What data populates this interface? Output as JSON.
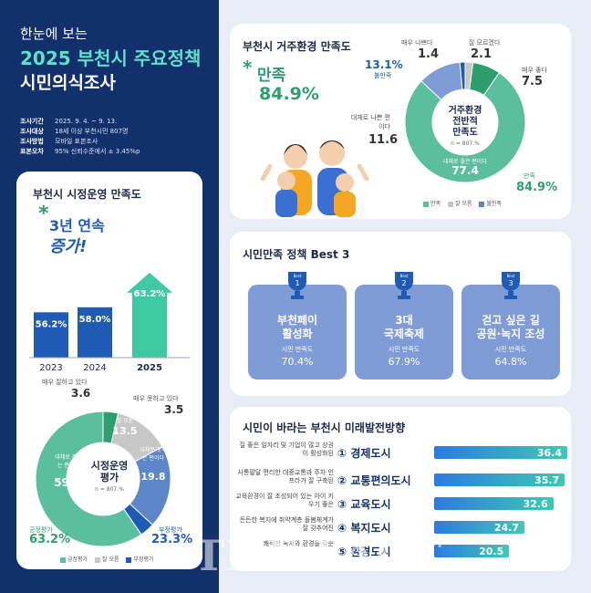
{
  "header": {
    "line1": "한눈에 보는",
    "line2": "2025 부천시 주요정책",
    "line3": "시민의식조사"
  },
  "meta": [
    {
      "k": "조사기간",
      "v": "2025. 9. 4. ~ 9. 13."
    },
    {
      "k": "조사대상",
      "v": "18세 이상 부천시민 807명"
    },
    {
      "k": "조사방법",
      "v": "모바일 표본조사"
    },
    {
      "k": "표본오차",
      "v": "95% 신뢰수준에서 ± 3.45%p"
    }
  ],
  "admin": {
    "title": "부천시 시정운영 만족도",
    "headline1": "3년 연속",
    "headline2": "증가!",
    "donut_center1": "시정운영",
    "donut_center2": "평가",
    "donut_n": "n = 807.%",
    "legend": [
      "긍정평가",
      "잘 모름",
      "부정평가"
    ],
    "labels": {
      "very_bad_label": "매우 잘하고 있다",
      "very_bad_value": "3.6",
      "very_good_label": "매우 못하고 있다",
      "very_good_value": "3.5",
      "dk_label": "잘 모름",
      "dk_value": "13.5",
      "pos_inner_label": "대체로 잘하는 편이다",
      "pos_inner_value": "59.6",
      "neg_inner_label": "대체로 못하는 편이다",
      "neg_inner_value": "19.8",
      "pos_total_label": "긍정평가",
      "pos_total_value": "63.2%",
      "neg_total_label": "부정평가",
      "neg_total_value": "23.3%"
    }
  },
  "living": {
    "title": "부천시 거주환경 만족도",
    "badge_label": "만족",
    "badge_value": "84.9%",
    "center1": "거주환경",
    "center2": "전반적",
    "center3": "만족도",
    "n": "n = 807.%",
    "labels": {
      "very_bad_label": "매우 나쁘다",
      "very_bad_value": "1.4",
      "dk_label": "잘 모르겠다",
      "dk_value": "2.1",
      "very_good_label": "매우 좋다",
      "very_good_value": "7.5",
      "bad_label": "대체로 나쁜 편이다",
      "bad_value": "11.6",
      "good_label": "대체로 좋은 편이다",
      "good_value": "77.4",
      "unsat_value": "13.1%",
      "unsat_label": "불만족",
      "sat_label": "만족",
      "sat_value": "84.9%"
    },
    "legend": [
      "만족",
      "잘 모름",
      "불만족"
    ]
  },
  "best3": {
    "title": "시민만족 정책 Best 3",
    "items": [
      {
        "rank": "1",
        "name1": "부천페이",
        "name2": "활성화",
        "sub": "시민 만족도",
        "pct": "70.4%"
      },
      {
        "rank": "2",
        "name1": "3대",
        "name2": "국제축제",
        "sub": "시민 만족도",
        "pct": "67.9%"
      },
      {
        "rank": "3",
        "name1": "걷고 싶은 길",
        "name2": "공원·녹지 조성",
        "sub": "시민 만족도",
        "pct": "64.8%"
      }
    ]
  },
  "future": {
    "title": "시민이 바라는 부천시 미래발전방향",
    "items": [
      {
        "num": "①",
        "name": "경제도시",
        "desc": "질 좋은 일자리 및 기업이 많고 상권이 활성화된",
        "value": "36.4"
      },
      {
        "num": "②",
        "name": "교통편의도시",
        "desc": "사통팔달 편리한 대중교통과 주차 인프라가 잘 구축된",
        "value": "35.7"
      },
      {
        "num": "③",
        "name": "교육도시",
        "desc": "교육환경이 잘 조성되어 있는 아이 키우기 좋은",
        "value": "32.6"
      },
      {
        "num": "④",
        "name": "복지도시",
        "desc": "든든한 복지에 취약계층 돌봄체계가 잘 갖추어진",
        "value": "24.7"
      },
      {
        "num": "⑤",
        "name": "환경도시",
        "desc": "쾌적한 녹지와 환경을 갖춘",
        "value": "20.5"
      }
    ]
  },
  "watermark": "THE FACT",
  "colors": {
    "navy": "#12306b",
    "teal": "#5bbf9e",
    "green_dark": "#2f9e6e",
    "blue_bar": "#1f5bb5",
    "grey": "#c7c7c7",
    "blue_neg": "#5d86c9"
  },
  "chart_data": [
    {
      "type": "bar",
      "categories": [
        "2023",
        "2024",
        "2025"
      ],
      "values": [
        56.2,
        58.0,
        63.2
      ],
      "ylim": [
        0,
        70
      ]
    },
    {
      "type": "pie",
      "categories": [
        "매우 잘하고 있다",
        "대체로 잘하는 편이다",
        "잘 모름",
        "대체로 못하는 편이다",
        "매우 못하고 있다"
      ],
      "values": [
        3.6,
        59.6,
        13.5,
        19.8,
        3.5
      ]
    },
    {
      "type": "pie",
      "categories": [
        "매우 좋다",
        "대체로 좋은 편이다",
        "대체로 나쁜 편이다",
        "매우 나쁘다",
        "잘 모르겠다"
      ],
      "values": [
        7.5,
        77.4,
        11.6,
        1.4,
        2.1
      ]
    },
    {
      "type": "bar",
      "categories": [
        "경제도시",
        "교통편의도시",
        "교육도시",
        "복지도시",
        "환경도시"
      ],
      "values": [
        36.4,
        35.7,
        32.6,
        24.7,
        20.5
      ]
    }
  ]
}
